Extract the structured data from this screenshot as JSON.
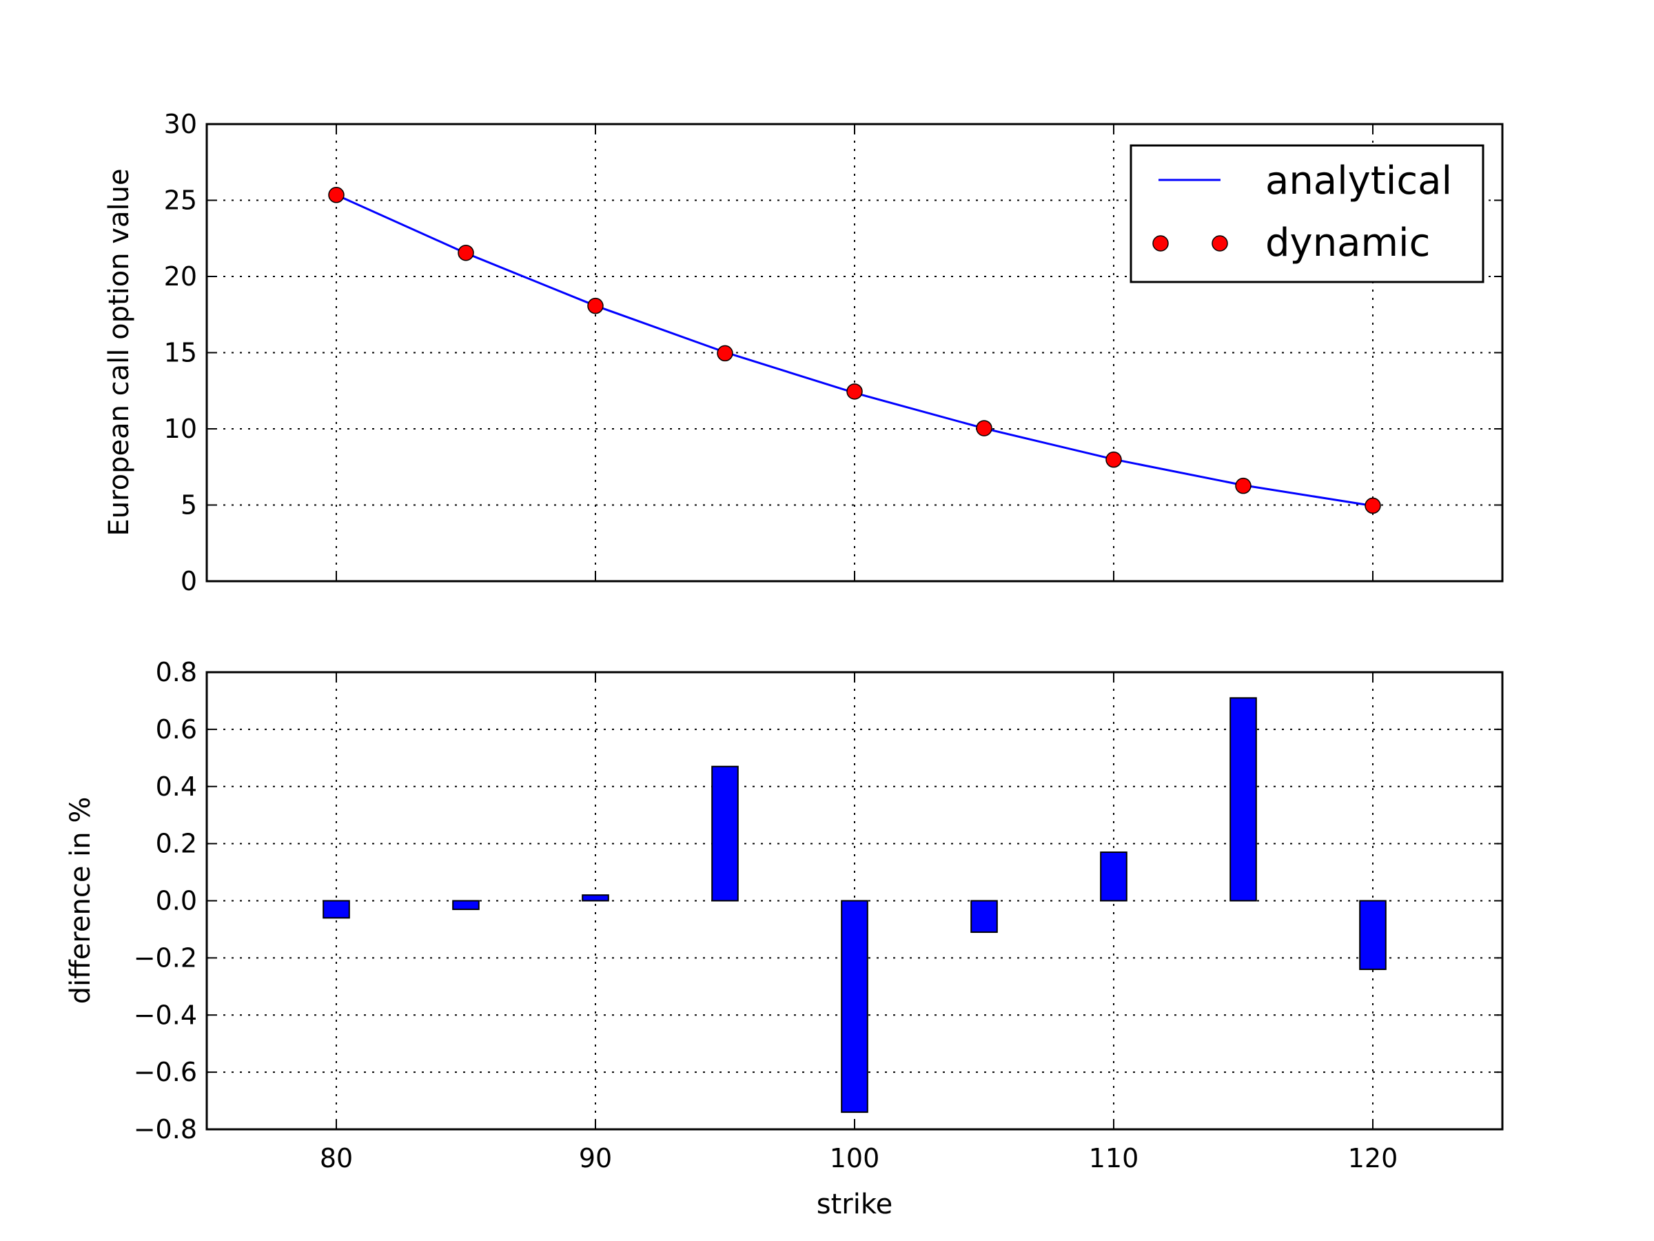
{
  "chart_data": [
    {
      "type": "line",
      "title": "",
      "xlabel": "",
      "ylabel": "European call option value",
      "xlim": [
        75,
        125
      ],
      "ylim": [
        0,
        30
      ],
      "xticks": [
        80,
        90,
        100,
        110,
        120
      ],
      "yticks": [
        0,
        5,
        10,
        15,
        20,
        25,
        30
      ],
      "grid": true,
      "legend_position": "top-right",
      "x": [
        80,
        85,
        90,
        95,
        100,
        105,
        110,
        115,
        120
      ],
      "series": [
        {
          "name": "analytical",
          "style": "line",
          "color": "#0000ff",
          "values": [
            25.35,
            21.53,
            18.08,
            15.03,
            12.36,
            10.03,
            8.0,
            6.3,
            4.95
          ]
        },
        {
          "name": "dynamic",
          "style": "markers",
          "color": "#ff0000",
          "values": [
            25.35,
            21.55,
            18.07,
            14.96,
            12.45,
            10.04,
            7.98,
            6.26,
            4.96
          ]
        }
      ]
    },
    {
      "type": "bar",
      "title": "",
      "xlabel": "strike",
      "ylabel": "difference in %",
      "xlim": [
        75,
        125
      ],
      "ylim": [
        -0.8,
        0.8
      ],
      "xticks": [
        80,
        90,
        100,
        110,
        120
      ],
      "yticks": [
        -0.8,
        -0.6,
        -0.4,
        -0.2,
        0.0,
        0.2,
        0.4,
        0.6,
        0.8
      ],
      "ytick_labels": [
        "−0.8",
        "−0.6",
        "−0.4",
        "−0.2",
        "0.0",
        "0.2",
        "0.4",
        "0.6",
        "0.8"
      ],
      "grid": true,
      "bar_color": "#0000ff",
      "x": [
        80,
        85,
        90,
        95,
        100,
        105,
        110,
        115,
        120
      ],
      "values": [
        -0.06,
        -0.03,
        0.02,
        0.47,
        -0.74,
        -0.11,
        0.17,
        0.71,
        -0.24
      ]
    }
  ]
}
